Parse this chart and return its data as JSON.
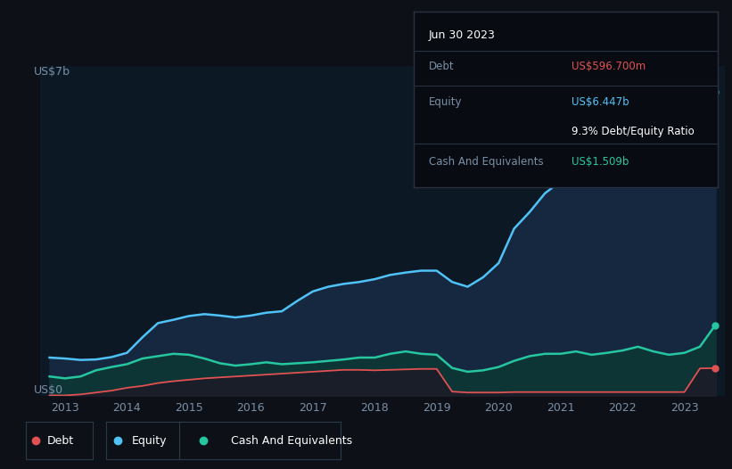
{
  "bg_color": "#0d1117",
  "plot_bg_color": "#0d1825",
  "debt_color": "#e05252",
  "equity_color": "#4fc3f7",
  "cash_color": "#26c6a0",
  "equity_fill_color": "#162840",
  "cash_fill_color": "#0d3535",
  "debt_fill_color": "#1c1c28",
  "ylabel": "US$7b",
  "y0_label": "US$0",
  "xlabel_ticks": [
    "2013",
    "2014",
    "2015",
    "2016",
    "2017",
    "2018",
    "2019",
    "2020",
    "2021",
    "2022",
    "2023"
  ],
  "tooltip_title": "Jun 30 2023",
  "tooltip_debt_label": "Debt",
  "tooltip_debt_value": "US$596.700m",
  "tooltip_equity_label": "Equity",
  "tooltip_equity_value": "US$6.447b",
  "tooltip_ratio": "9.3% Debt/Equity Ratio",
  "tooltip_cash_label": "Cash And Equivalents",
  "tooltip_cash_value": "US$1.509b",
  "tooltip_bg": "#080c12",
  "tooltip_border": "#2a3040",
  "years": [
    2012.75,
    2013.0,
    2013.25,
    2013.5,
    2013.75,
    2014.0,
    2014.25,
    2014.5,
    2014.75,
    2015.0,
    2015.25,
    2015.5,
    2015.75,
    2016.0,
    2016.25,
    2016.5,
    2016.75,
    2017.0,
    2017.25,
    2017.5,
    2017.75,
    2018.0,
    2018.25,
    2018.5,
    2018.75,
    2019.0,
    2019.25,
    2019.5,
    2019.75,
    2020.0,
    2020.25,
    2020.5,
    2020.75,
    2021.0,
    2021.25,
    2021.5,
    2021.75,
    2022.0,
    2022.25,
    2022.5,
    2022.75,
    2023.0,
    2023.25,
    2023.5
  ],
  "equity": [
    0.82,
    0.8,
    0.77,
    0.78,
    0.83,
    0.92,
    1.25,
    1.55,
    1.62,
    1.7,
    1.74,
    1.71,
    1.67,
    1.71,
    1.77,
    1.8,
    2.02,
    2.22,
    2.32,
    2.38,
    2.42,
    2.48,
    2.57,
    2.62,
    2.66,
    2.66,
    2.42,
    2.32,
    2.52,
    2.82,
    3.55,
    3.9,
    4.3,
    4.55,
    4.85,
    5.05,
    5.25,
    5.55,
    6.05,
    6.25,
    6.05,
    6.55,
    6.9,
    6.447
  ],
  "cash": [
    0.42,
    0.38,
    0.42,
    0.55,
    0.62,
    0.68,
    0.8,
    0.85,
    0.9,
    0.88,
    0.8,
    0.7,
    0.65,
    0.68,
    0.72,
    0.68,
    0.7,
    0.72,
    0.75,
    0.78,
    0.82,
    0.82,
    0.9,
    0.95,
    0.9,
    0.88,
    0.6,
    0.52,
    0.55,
    0.62,
    0.75,
    0.85,
    0.9,
    0.9,
    0.95,
    0.88,
    0.92,
    0.97,
    1.05,
    0.95,
    0.88,
    0.92,
    1.05,
    1.509
  ],
  "debt": [
    0.02,
    0.02,
    0.04,
    0.08,
    0.12,
    0.18,
    0.22,
    0.28,
    0.32,
    0.35,
    0.38,
    0.4,
    0.42,
    0.44,
    0.46,
    0.48,
    0.5,
    0.52,
    0.54,
    0.56,
    0.56,
    0.55,
    0.56,
    0.57,
    0.58,
    0.58,
    0.1,
    0.08,
    0.08,
    0.08,
    0.09,
    0.09,
    0.09,
    0.09,
    0.09,
    0.09,
    0.09,
    0.09,
    0.09,
    0.09,
    0.09,
    0.09,
    0.59,
    0.5967
  ],
  "ylim": [
    0,
    7.0
  ],
  "xlim": [
    2012.6,
    2023.65
  ]
}
